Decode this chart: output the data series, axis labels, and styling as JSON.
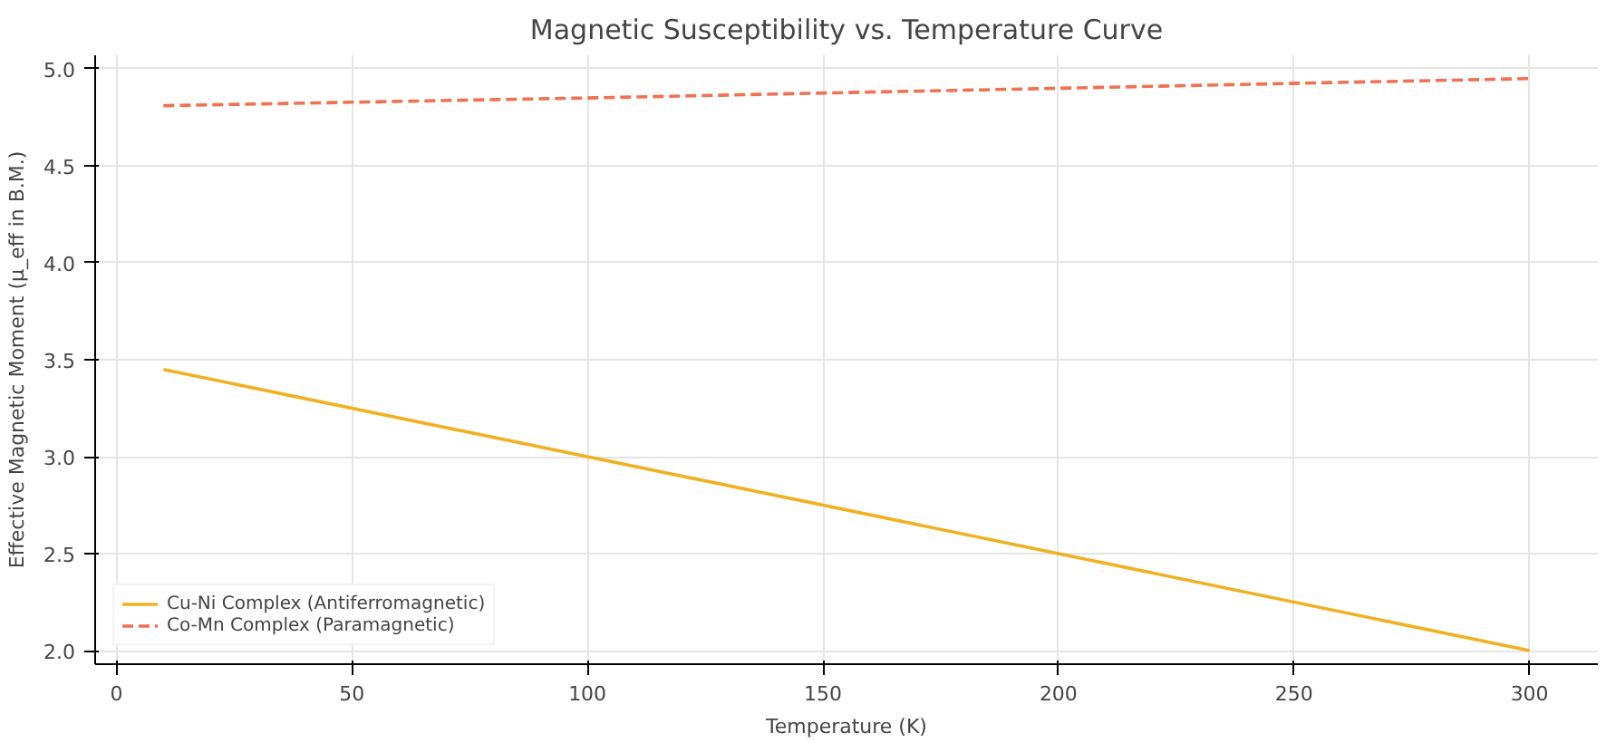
{
  "chart_data": {
    "type": "line",
    "title": "Magnetic Susceptibility vs. Temperature Curve",
    "xlabel": "Temperature (K)",
    "ylabel": "Effective Magnetic Moment (μ_eff in B.M.)",
    "series": [
      {
        "name": "Cu-Ni Complex (Antiferromagnetic)",
        "color": "#f0b020",
        "line_style": "solid",
        "x": [
          10,
          100,
          200,
          300
        ],
        "values": [
          3.45,
          3.0,
          2.5,
          2.0
        ]
      },
      {
        "name": "Co-Mn Complex (Paramagnetic)",
        "color": "#f07050",
        "line_style": "dashed",
        "x": [
          10,
          100,
          200,
          300
        ],
        "values": [
          4.81,
          4.85,
          4.9,
          4.95
        ]
      }
    ],
    "xlim": [
      -4.5,
      314.5
    ],
    "ylim": [
      1.93,
      5.07
    ],
    "xticks": [
      0,
      50,
      100,
      150,
      200,
      250,
      300
    ],
    "yticks": [
      {
        "value": 2,
        "label": "2.0"
      },
      2.5,
      {
        "value": 3,
        "label": "3.0"
      },
      3.5,
      {
        "value": 4,
        "label": "4.0"
      },
      4.5,
      {
        "value": 5,
        "label": "5.0"
      }
    ],
    "grid": true,
    "legend": "bottom left",
    "marker": "none"
  }
}
